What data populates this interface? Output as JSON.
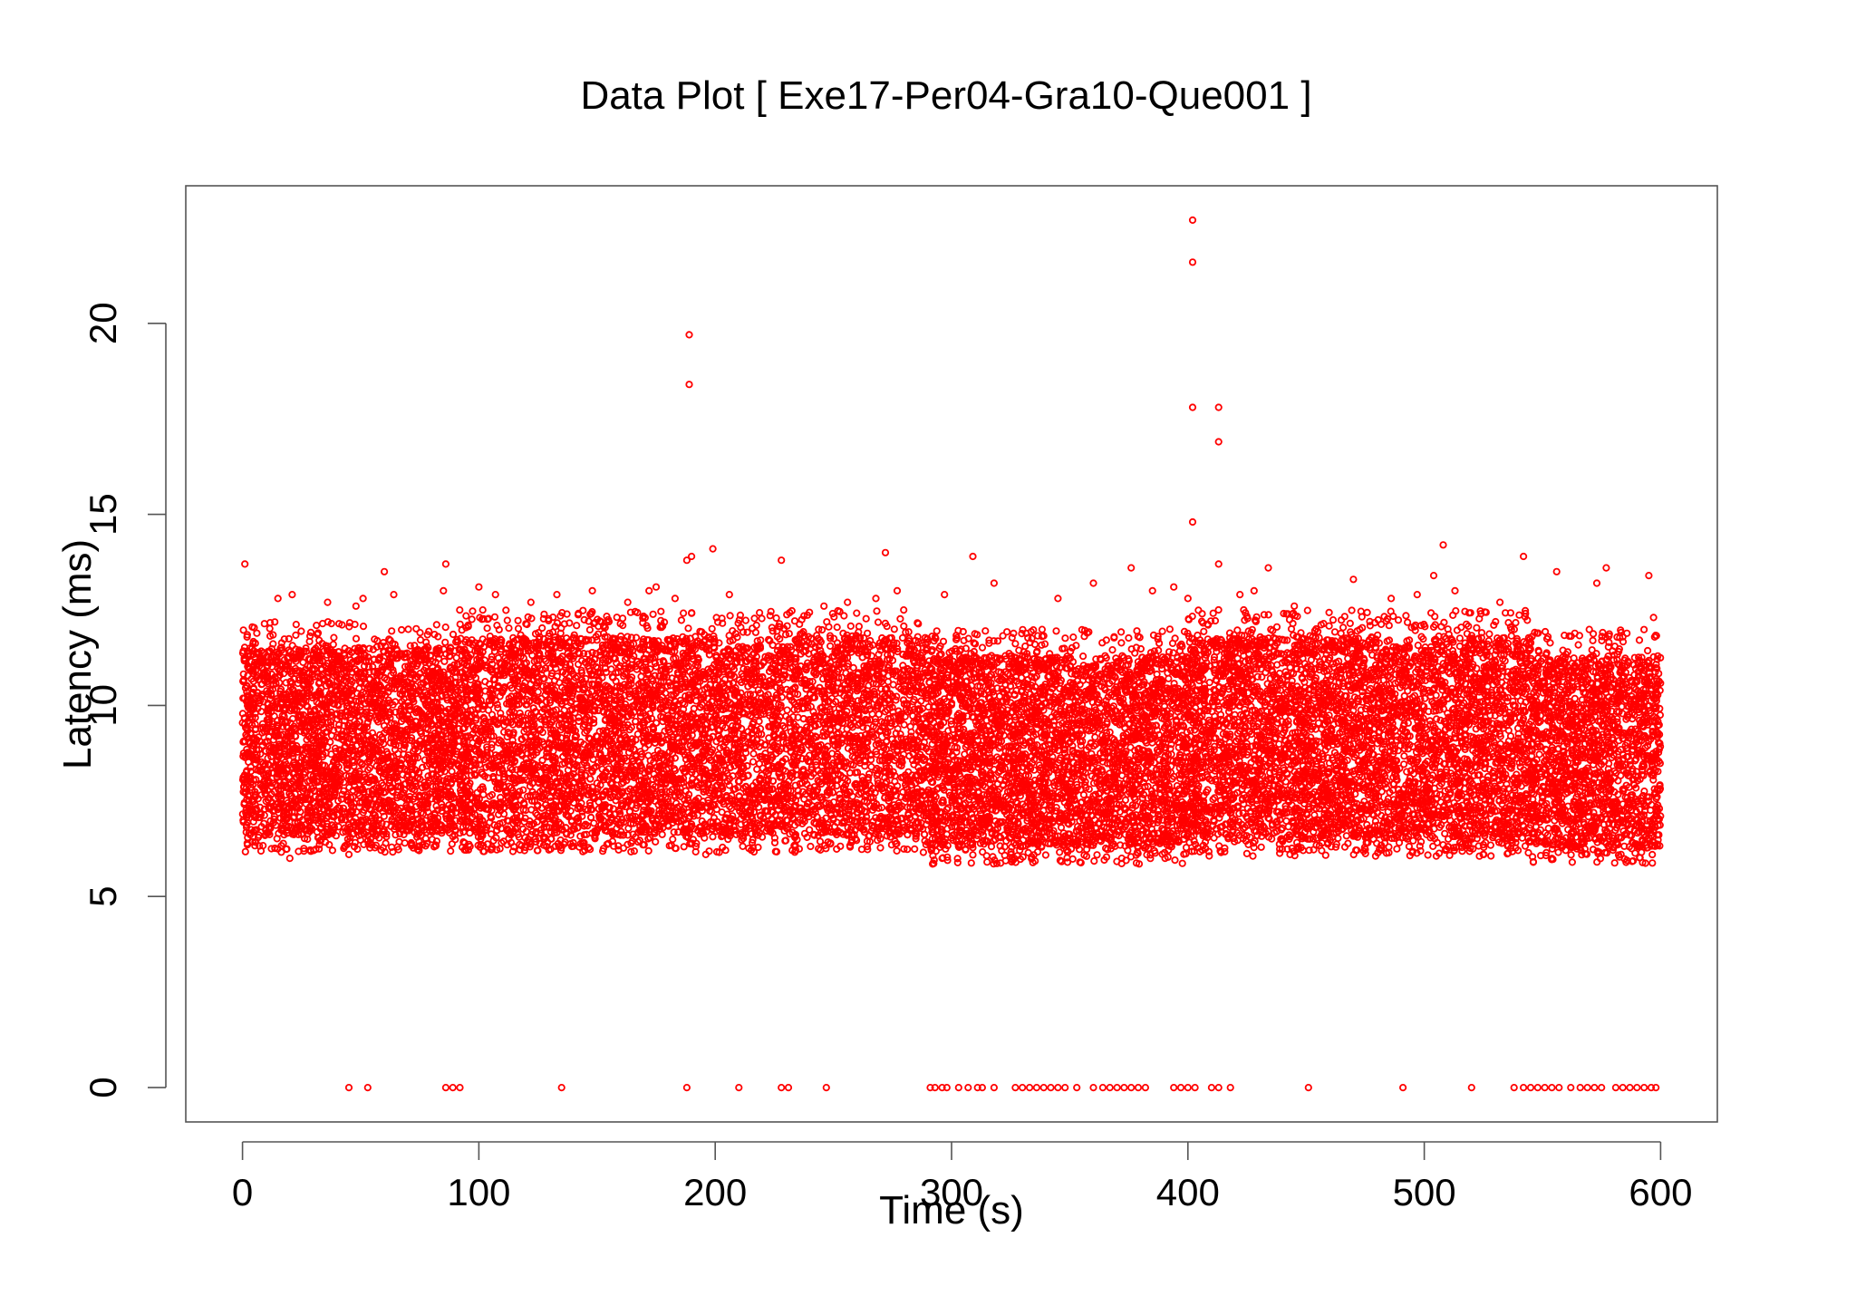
{
  "chart_data": {
    "type": "scatter",
    "title": "Data Plot [ Exe17-Per04-Gra10-Que001 ]",
    "xlabel": "Time (s)",
    "ylabel": "Latency (ms)",
    "xlim": [
      -24,
      624
    ],
    "ylim": [
      -0.9,
      23.6
    ],
    "xticks": [
      0,
      100,
      200,
      300,
      400,
      500,
      600
    ],
    "yticks": [
      0,
      5,
      10,
      15,
      20
    ],
    "xtick_labels": [
      "0",
      "100",
      "200",
      "300",
      "400",
      "500",
      "600"
    ],
    "ytick_labels": [
      "0",
      "5",
      "10",
      "15",
      "20"
    ],
    "grid": false,
    "legend": "none",
    "marker": "open-circle",
    "color": "#ff0000",
    "dense_band": {
      "x_range": [
        0,
        600
      ],
      "y_segments": [
        {
          "x": [
            0,
            90
          ],
          "y": [
            6.6,
            11.5
          ]
        },
        {
          "x": [
            90,
            290
          ],
          "y": [
            6.6,
            11.8
          ]
        },
        {
          "x": [
            290,
            400
          ],
          "y": [
            6.3,
            11.3
          ]
        },
        {
          "x": [
            400,
            545
          ],
          "y": [
            6.5,
            11.8
          ]
        },
        {
          "x": [
            545,
            600
          ],
          "y": [
            6.3,
            11.3
          ]
        }
      ]
    },
    "points": [
      [
        1,
        13.7
      ],
      [
        15,
        12.8
      ],
      [
        21,
        12.9
      ],
      [
        36,
        12.7
      ],
      [
        48,
        12.6
      ],
      [
        51,
        12.8
      ],
      [
        60,
        13.5
      ],
      [
        64,
        12.9
      ],
      [
        85,
        13.0
      ],
      [
        86,
        13.7
      ],
      [
        100,
        13.1
      ],
      [
        107,
        12.9
      ],
      [
        122,
        12.7
      ],
      [
        133,
        12.9
      ],
      [
        148,
        13.0
      ],
      [
        163,
        12.7
      ],
      [
        172,
        13.0
      ],
      [
        175,
        13.1
      ],
      [
        183,
        12.8
      ],
      [
        188,
        13.8
      ],
      [
        189,
        19.7
      ],
      [
        189,
        18.4
      ],
      [
        190,
        13.9
      ],
      [
        199,
        14.1
      ],
      [
        206,
        12.9
      ],
      [
        228,
        13.8
      ],
      [
        246,
        12.6
      ],
      [
        256,
        12.7
      ],
      [
        268,
        12.8
      ],
      [
        272,
        14.0
      ],
      [
        277,
        13.0
      ],
      [
        297,
        12.9
      ],
      [
        309,
        13.9
      ],
      [
        318,
        13.2
      ],
      [
        345,
        12.8
      ],
      [
        360,
        13.2
      ],
      [
        376,
        13.6
      ],
      [
        385,
        13.0
      ],
      [
        394,
        13.1
      ],
      [
        400,
        12.8
      ],
      [
        402,
        22.7
      ],
      [
        402,
        21.6
      ],
      [
        402,
        17.8
      ],
      [
        402,
        14.8
      ],
      [
        406,
        12.4
      ],
      [
        413,
        17.8
      ],
      [
        413,
        16.9
      ],
      [
        413,
        13.7
      ],
      [
        422,
        12.9
      ],
      [
        428,
        13.0
      ],
      [
        434,
        13.6
      ],
      [
        445,
        12.6
      ],
      [
        470,
        13.3
      ],
      [
        486,
        12.8
      ],
      [
        497,
        12.9
      ],
      [
        504,
        13.4
      ],
      [
        508,
        14.2
      ],
      [
        513,
        13.0
      ],
      [
        524,
        12.4
      ],
      [
        532,
        12.7
      ],
      [
        542,
        13.9
      ],
      [
        556,
        13.5
      ],
      [
        573,
        13.2
      ],
      [
        577,
        13.6
      ],
      [
        595,
        13.4
      ],
      [
        597,
        12.3
      ],
      [
        292,
        5.85
      ],
      [
        296,
        6.0
      ],
      [
        196,
        6.1
      ],
      [
        20,
        6.0
      ],
      [
        45,
        6.1
      ],
      [
        372,
        6.0
      ]
    ],
    "zero_points_x": [
      45,
      53,
      86,
      89,
      92,
      135,
      188,
      210,
      228,
      231,
      247,
      291,
      293,
      296,
      298,
      303,
      307,
      311,
      313,
      318,
      327,
      330,
      333,
      336,
      339,
      342,
      345,
      348,
      353,
      360,
      364,
      367,
      370,
      373,
      376,
      379,
      382,
      394,
      397,
      400,
      403,
      410,
      413,
      418,
      451,
      491,
      520,
      538,
      542,
      545,
      548,
      551,
      554,
      557,
      562,
      566,
      569,
      572,
      575,
      581,
      584,
      587,
      590,
      593,
      596,
      598
    ]
  }
}
